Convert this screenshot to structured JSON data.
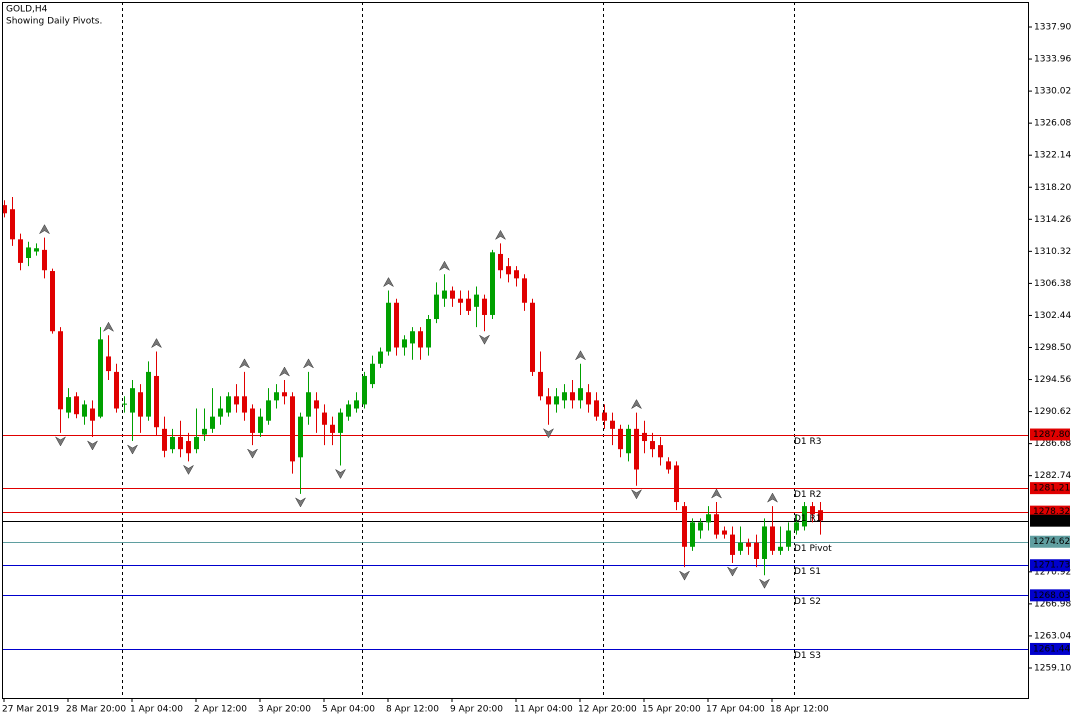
{
  "chart_data": {
    "type": "candlestick",
    "title": "GOLD,H4",
    "subtitle": "Showing Daily Pivots.",
    "up_color": "#00a000",
    "down_color": "#e00000",
    "categories": [
      "27 Mar 2019",
      null,
      null,
      null,
      null,
      null,
      null,
      null,
      "28 Mar 20:00",
      null,
      null,
      null,
      null,
      null,
      null,
      null,
      "1 Apr 04:00",
      null,
      null,
      null,
      null,
      null,
      null,
      null,
      "2 Apr 12:00",
      null,
      null,
      null,
      null,
      null,
      null,
      null,
      "3 Apr 20:00",
      null,
      null,
      null,
      null,
      null,
      null,
      null,
      "5 Apr 04:00",
      null,
      null,
      null,
      null,
      null,
      null,
      null,
      "8 Apr 12:00",
      null,
      null,
      null,
      null,
      null,
      null,
      null,
      "9 Apr 20:00",
      null,
      null,
      null,
      null,
      null,
      null,
      null,
      "11 Apr 04:00",
      null,
      null,
      null,
      null,
      null,
      null,
      null,
      "12 Apr 20:00",
      null,
      null,
      null,
      null,
      null,
      null,
      null,
      "15 Apr 20:00",
      null,
      null,
      null,
      null,
      null,
      null,
      null,
      "17 Apr 04:00",
      null,
      null,
      null,
      null,
      null,
      null,
      null,
      "18 Apr 12:00",
      null,
      null,
      null,
      null,
      null,
      null
    ],
    "open": [
      1316.0,
      1315.5,
      1311.8,
      1309.5,
      1310.3,
      1310.5,
      1307.9,
      1300.5,
      1290.5,
      1292.5,
      1290.0,
      1291.0,
      1290.0,
      1297.4,
      1295.5,
      1291.5,
      1290.5,
      1293.0,
      1290.0,
      1295.0,
      1288.5,
      1286.0,
      1287.5,
      1287.0,
      1286.0,
      1287.8,
      1288.5,
      1290.0,
      1290.5,
      1292.5,
      1292.5,
      1291.0,
      1288.0,
      1289.5,
      1292.0,
      1293.0,
      1292.5,
      1285.0,
      1290.0,
      1292.0,
      1290.5,
      1289.0,
      1288.0,
      1290.0,
      1291.0,
      1291.5,
      1294.0,
      1296.5,
      1298.0,
      1304.0,
      1298.5,
      1299.0,
      1300.5,
      1298.5,
      1302.0,
      1304.5,
      1305.5,
      1304.5,
      1304.5,
      1303.5,
      1304.5,
      1302.5,
      1310.0,
      1308.5,
      1308.0,
      1307.0,
      1304.0,
      1295.5,
      1292.5,
      1291.5,
      1292.0,
      1293.0,
      1292.0,
      1293.0,
      1292.0,
      1290.5,
      1289.5,
      1288.5,
      1285.5,
      1288.5,
      1288.0,
      1287.0,
      1286.5,
      1284.5,
      1284.0,
      1279.0,
      1274.0,
      1276.0,
      1277.0,
      1278.0,
      1276.0,
      1275.5,
      1273.5,
      1274.5,
      1274.5,
      1272.5,
      1276.5,
      1273.5,
      1274.0,
      1276.0,
      1276.5,
      1279.0,
      1278.5
    ],
    "high": [
      1316.6,
      1317.0,
      1312.5,
      1311.5,
      1311.3,
      1312.0,
      1308.2,
      1301.0,
      1293.5,
      1293.0,
      1292.0,
      1292.0,
      1301.0,
      1300.0,
      1296.5,
      1292.5,
      1294.5,
      1294.0,
      1296.8,
      1298.0,
      1290.0,
      1288.5,
      1289.5,
      1288.0,
      1291.0,
      1291.0,
      1293.5,
      1292.5,
      1293.0,
      1294.0,
      1295.5,
      1291.5,
      1291.0,
      1293.5,
      1294.0,
      1294.5,
      1293.0,
      1290.5,
      1295.5,
      1293.0,
      1291.5,
      1290.0,
      1291.0,
      1292.0,
      1293.0,
      1295.5,
      1297.5,
      1298.5,
      1305.5,
      1304.5,
      1300.0,
      1301.0,
      1301.0,
      1302.5,
      1306.5,
      1307.5,
      1306.0,
      1305.5,
      1305.5,
      1306.0,
      1305.0,
      1310.5,
      1311.3,
      1309.5,
      1308.5,
      1307.5,
      1304.5,
      1298.0,
      1293.5,
      1293.5,
      1294.0,
      1294.5,
      1296.5,
      1294.0,
      1293.0,
      1291.5,
      1290.5,
      1289.0,
      1289.0,
      1290.5,
      1289.5,
      1288.0,
      1287.5,
      1285.0,
      1284.5,
      1279.5,
      1277.5,
      1277.5,
      1279.0,
      1279.5,
      1276.5,
      1276.5,
      1276.5,
      1275.0,
      1275.5,
      1277.5,
      1279.0,
      1276.5,
      1277.0,
      1278.0,
      1279.5,
      1279.5,
      1279.5
    ],
    "low": [
      1314.5,
      1311.0,
      1308.0,
      1308.5,
      1309.8,
      1307.0,
      1300.2,
      1288.0,
      1289.8,
      1289.8,
      1289.0,
      1287.5,
      1289.8,
      1294.5,
      1290.5,
      1290.5,
      1287.0,
      1288.0,
      1289.5,
      1287.7,
      1285.0,
      1285.5,
      1285.0,
      1284.5,
      1285.5,
      1287.0,
      1288.0,
      1289.0,
      1290.0,
      1290.5,
      1289.5,
      1286.5,
      1287.5,
      1289.0,
      1291.0,
      1291.5,
      1283.0,
      1280.5,
      1289.0,
      1288.0,
      1286.5,
      1286.5,
      1284.0,
      1289.5,
      1290.5,
      1291.0,
      1293.5,
      1296.0,
      1297.5,
      1297.5,
      1297.5,
      1297.0,
      1297.0,
      1297.5,
      1301.5,
      1303.5,
      1303.5,
      1302.5,
      1302.5,
      1301.0,
      1300.5,
      1302.0,
      1307.0,
      1306.5,
      1306.0,
      1303.0,
      1295.0,
      1292.0,
      1289.0,
      1290.5,
      1291.0,
      1291.0,
      1291.0,
      1290.5,
      1289.5,
      1288.5,
      1286.5,
      1285.0,
      1284.5,
      1281.5,
      1285.5,
      1285.0,
      1284.0,
      1283.0,
      1278.5,
      1271.5,
      1273.5,
      1275.0,
      1276.0,
      1275.0,
      1275.0,
      1272.0,
      1273.0,
      1273.0,
      1271.5,
      1270.5,
      1273.0,
      1273.0,
      1273.5,
      1275.5,
      1276.0,
      1277.0,
      1275.5
    ],
    "close": [
      1315.0,
      1311.8,
      1308.9,
      1310.8,
      1310.7,
      1308.0,
      1300.5,
      1290.9,
      1292.4,
      1290.3,
      1291.5,
      1289.5,
      1299.5,
      1295.6,
      1291.0,
      1291.6,
      1293.5,
      1290.0,
      1295.5,
      1288.7,
      1285.8,
      1287.5,
      1286.0,
      1285.5,
      1287.5,
      1288.5,
      1290.0,
      1291.0,
      1292.5,
      1291.5,
      1290.5,
      1288.0,
      1290.0,
      1292.0,
      1293.0,
      1292.5,
      1284.5,
      1290.0,
      1293.0,
      1291.0,
      1289.0,
      1288.0,
      1290.5,
      1291.5,
      1292.0,
      1295.0,
      1296.5,
      1298.0,
      1304.0,
      1298.5,
      1299.5,
      1300.5,
      1298.5,
      1302.0,
      1305.0,
      1305.5,
      1304.5,
      1304.0,
      1303.0,
      1305.0,
      1302.5,
      1310.2,
      1308.0,
      1307.5,
      1307.0,
      1304.0,
      1295.5,
      1292.5,
      1291.5,
      1292.5,
      1293.0,
      1292.0,
      1293.5,
      1291.5,
      1290.0,
      1289.5,
      1288.5,
      1286.0,
      1288.5,
      1283.5,
      1287.0,
      1286.0,
      1285.0,
      1283.5,
      1279.5,
      1274.0,
      1277.0,
      1277.0,
      1278.0,
      1275.5,
      1275.5,
      1273.0,
      1274.5,
      1274.0,
      1272.5,
      1276.5,
      1273.5,
      1274.0,
      1276.0,
      1277.0,
      1279.0,
      1278.0,
      1277.21
    ],
    "fractals_up": [
      5,
      13,
      19,
      30,
      35,
      38,
      48,
      55,
      62,
      72,
      79,
      89,
      96
    ],
    "fractals_down": [
      7,
      11,
      16,
      23,
      31,
      37,
      42,
      60,
      68,
      79,
      85,
      91,
      95
    ],
    "levels": [
      {
        "name": "D1 R3",
        "value": 1287.8,
        "value_label": "1287.80",
        "color": "#e00000"
      },
      {
        "name": "D1 R2",
        "value": 1281.21,
        "color": "#e00000"
      },
      {
        "name": "D1 R1",
        "value": 1278.32,
        "color": "#e00000"
      },
      {
        "name": "D1 Pivot",
        "value": 1274.62,
        "color": "#5f9ea0"
      },
      {
        "name": "D1 S1",
        "value": 1271.73,
        "color": "#0000cd"
      },
      {
        "name": "D1 S2",
        "value": 1268.03,
        "color": "#0000cd"
      },
      {
        "name": "D1 S3",
        "value": 1261.44,
        "color": "#0000cd"
      }
    ],
    "current_price": 1277.21,
    "ylim": [
      1255.41,
      1341.22
    ],
    "yticks": [
      {
        "value": 1337.9,
        "label": "1337.90"
      },
      1333.96,
      1330.02,
      1326.08,
      1322.14,
      {
        "value": 1318.2,
        "label": "1318.20"
      },
      1314.26,
      1310.32,
      1306.38,
      1302.44,
      {
        "value": 1298.5,
        "label": "1298.50"
      },
      1294.56,
      1290.62,
      1286.68,
      1282.74,
      1270.92,
      1266.98,
      1263.04,
      {
        "value": 1259.1,
        "label": "1259.10"
      }
    ]
  }
}
